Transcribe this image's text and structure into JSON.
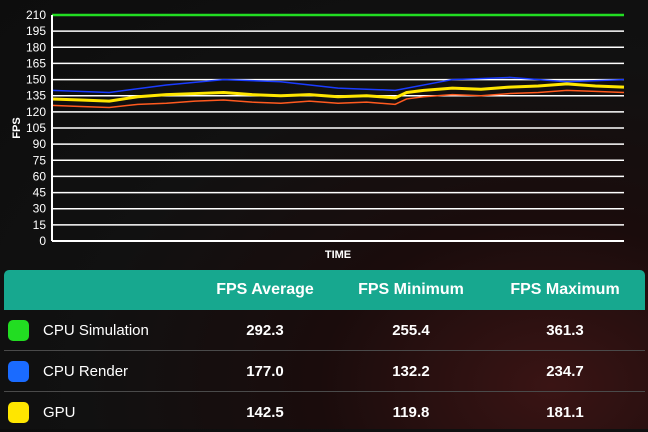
{
  "chart_data": {
    "type": "line",
    "xlabel": "TIME",
    "ylabel": "FPS",
    "ylim": [
      0,
      210
    ],
    "yticks": [
      0,
      15,
      30,
      45,
      60,
      75,
      90,
      105,
      120,
      135,
      150,
      165,
      180,
      195,
      210
    ],
    "grid": true,
    "series": [
      {
        "name": "CPU Simulation",
        "color": "#22dd22",
        "x": [
          0,
          100
        ],
        "values": [
          210,
          210
        ]
      },
      {
        "name": "CPU Render",
        "color": "#1a3cff",
        "x": [
          0,
          10,
          20,
          30,
          40,
          50,
          60,
          70,
          80,
          90,
          100
        ],
        "values": [
          140,
          138,
          145,
          150,
          148,
          142,
          140,
          150,
          152,
          148,
          150
        ]
      },
      {
        "name": "GPU",
        "color": "#ffe600",
        "x": [
          0,
          5,
          10,
          15,
          20,
          25,
          30,
          35,
          40,
          45,
          50,
          55,
          60,
          62,
          65,
          70,
          75,
          80,
          85,
          90,
          95,
          100
        ],
        "values": [
          132,
          131,
          130,
          134,
          136,
          137,
          138,
          136,
          135,
          136,
          134,
          135,
          133,
          138,
          140,
          142,
          141,
          143,
          144,
          146,
          144,
          143
        ]
      },
      {
        "name": "",
        "color": "#ff5a1f",
        "x": [
          0,
          5,
          10,
          15,
          20,
          25,
          30,
          35,
          40,
          45,
          50,
          55,
          60,
          62,
          65,
          70,
          75,
          80,
          85,
          90,
          95,
          100
        ],
        "values": [
          126,
          125,
          124,
          127,
          128,
          130,
          131,
          129,
          128,
          130,
          128,
          129,
          127,
          132,
          134,
          136,
          135,
          137,
          138,
          140,
          139,
          138
        ]
      }
    ]
  },
  "table": {
    "headers": [
      "",
      "FPS Average",
      "FPS Minimum",
      "FPS Maximum"
    ],
    "rows": [
      {
        "name": "CPU Simulation",
        "color": "#22dd22",
        "avg": "292.3",
        "min": "255.4",
        "max": "361.3"
      },
      {
        "name": "CPU Render",
        "color": "#1a6bff",
        "avg": "177.0",
        "min": "132.2",
        "max": "234.7"
      },
      {
        "name": "GPU",
        "color": "#ffe600",
        "avg": "142.5",
        "min": "119.8",
        "max": "181.1"
      }
    ]
  }
}
